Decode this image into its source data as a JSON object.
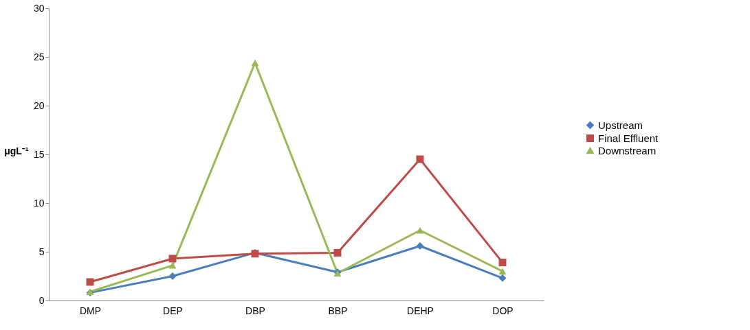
{
  "chart_data": {
    "type": "line",
    "ylabel": "μgL⁻¹",
    "categories": [
      "DMP",
      "DEP",
      "DBP",
      "BBP",
      "DEHP",
      "DOP"
    ],
    "series": [
      {
        "name": "Upstream",
        "color": "#4a7ebb",
        "marker": "diamond",
        "values": [
          0.8,
          2.5,
          4.9,
          2.9,
          5.6,
          2.3
        ]
      },
      {
        "name": "Final Effluent",
        "color": "#be4b48",
        "marker": "square",
        "values": [
          1.9,
          4.3,
          4.8,
          4.9,
          14.5,
          3.9
        ]
      },
      {
        "name": "Downstream",
        "color": "#98b954",
        "marker": "triangle",
        "values": [
          0.9,
          3.6,
          24.4,
          2.8,
          7.2,
          3.0
        ]
      }
    ],
    "ylim": [
      0,
      30
    ],
    "yticks": [
      0,
      5,
      10,
      15,
      20,
      25,
      30
    ],
    "grid": false,
    "legend": "right",
    "line_style": "solid"
  }
}
